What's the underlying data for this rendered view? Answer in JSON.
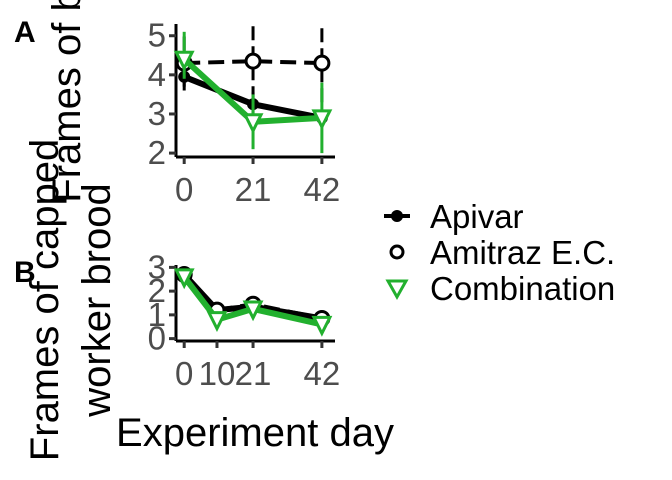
{
  "figure": {
    "x_title": "Experiment day",
    "y_title_line1": "Frames of capped",
    "y_title_line2": "worker brood",
    "y_title_overlap": "Frames of b"
  },
  "legend": [
    {
      "label": "Apivar",
      "marker": "filled-circle",
      "color": "#000000"
    },
    {
      "label": "Amitraz E.C.",
      "marker": "open-circle",
      "color": "#000000"
    },
    {
      "label": "Combination",
      "marker": "open-triangle-down",
      "color": "#22b02e"
    }
  ],
  "chart_data": [
    {
      "panel": "A",
      "type": "line",
      "x": [
        0,
        21,
        42
      ],
      "xticks": [
        0,
        21,
        42
      ],
      "yticks": [
        2,
        3,
        4,
        5
      ],
      "xlim": [
        -2.5,
        46
      ],
      "ylim": [
        1.9,
        5.3
      ],
      "series": [
        {
          "name": "Apivar",
          "color": "#000000",
          "marker": "filled-circle",
          "linestyle": "solid",
          "values": [
            3.95,
            3.25,
            2.9
          ],
          "err_low": [
            3.7,
            3.0,
            2.7
          ],
          "err_high": [
            4.25,
            3.55,
            3.1
          ]
        },
        {
          "name": "Amitraz E.C.",
          "color": "#000000",
          "marker": "open-circle",
          "linestyle": "dashed",
          "values": [
            4.3,
            4.35,
            4.3
          ],
          "err_low": [
            3.6,
            3.35,
            3.3
          ],
          "err_high": [
            5.0,
            5.3,
            5.3
          ]
        },
        {
          "name": "Combination",
          "color": "#22b02e",
          "marker": "open-triangle-down",
          "linestyle": "solid",
          "values": [
            4.4,
            2.8,
            2.9
          ],
          "err_low": [
            3.9,
            2.1,
            2.0
          ],
          "err_high": [
            5.1,
            3.5,
            3.8
          ]
        }
      ]
    },
    {
      "panel": "B",
      "type": "line",
      "x": [
        0,
        10,
        21,
        42
      ],
      "xticks": [
        0,
        10,
        21,
        42
      ],
      "xticklabels": [
        "0",
        "10",
        "21",
        "42"
      ],
      "yticks": [
        0,
        1,
        2,
        3
      ],
      "xlim": [
        -2.5,
        46
      ],
      "ylim": [
        -0.1,
        3.1
      ],
      "series": [
        {
          "name": "Apivar",
          "color": "#000000",
          "marker": "filled-circle",
          "linestyle": "solid",
          "values": [
            2.7,
            1.2,
            1.35,
            0.85
          ]
        },
        {
          "name": "Amitraz E.C.",
          "color": "#000000",
          "marker": "open-circle",
          "linestyle": "dashed",
          "values": [
            2.7,
            1.2,
            1.45,
            0.85
          ]
        },
        {
          "name": "Combination",
          "color": "#22b02e",
          "marker": "open-triangle-down",
          "linestyle": "solid",
          "values": [
            2.6,
            0.8,
            1.25,
            0.6
          ]
        }
      ]
    }
  ]
}
